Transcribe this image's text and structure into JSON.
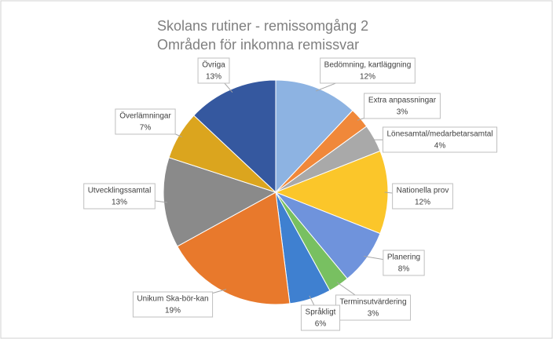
{
  "chart_data": {
    "type": "pie",
    "title": "Skolans rutiner - remissomgång 2",
    "subtitle": "Områden för inkomna remissvar",
    "categories": [
      "Bedömning, kartläggning",
      "Extra anpassningar",
      "Lönesamtal/medarbetarsamtal",
      "Nationella prov",
      "Planering",
      "Terminsutvärdering",
      "Språkligt",
      "Unikum Ska-bör-kan",
      "Utvecklingssamtal",
      "Överlämningar",
      "Övriga"
    ],
    "values": [
      12,
      3,
      4,
      12,
      8,
      3,
      6,
      19,
      13,
      7,
      13
    ],
    "value_labels": [
      "12%",
      "3%",
      "4%",
      "12%",
      "8%",
      "3%",
      "6%",
      "19%",
      "13%",
      "7%",
      "13%"
    ],
    "colors": [
      "#8db3e2",
      "#f0883a",
      "#a9a9a9",
      "#fbc62a",
      "#6f93dc",
      "#78c061",
      "#3f80d0",
      "#e8792c",
      "#8a8a8a",
      "#dba51e",
      "#35589f"
    ]
  }
}
